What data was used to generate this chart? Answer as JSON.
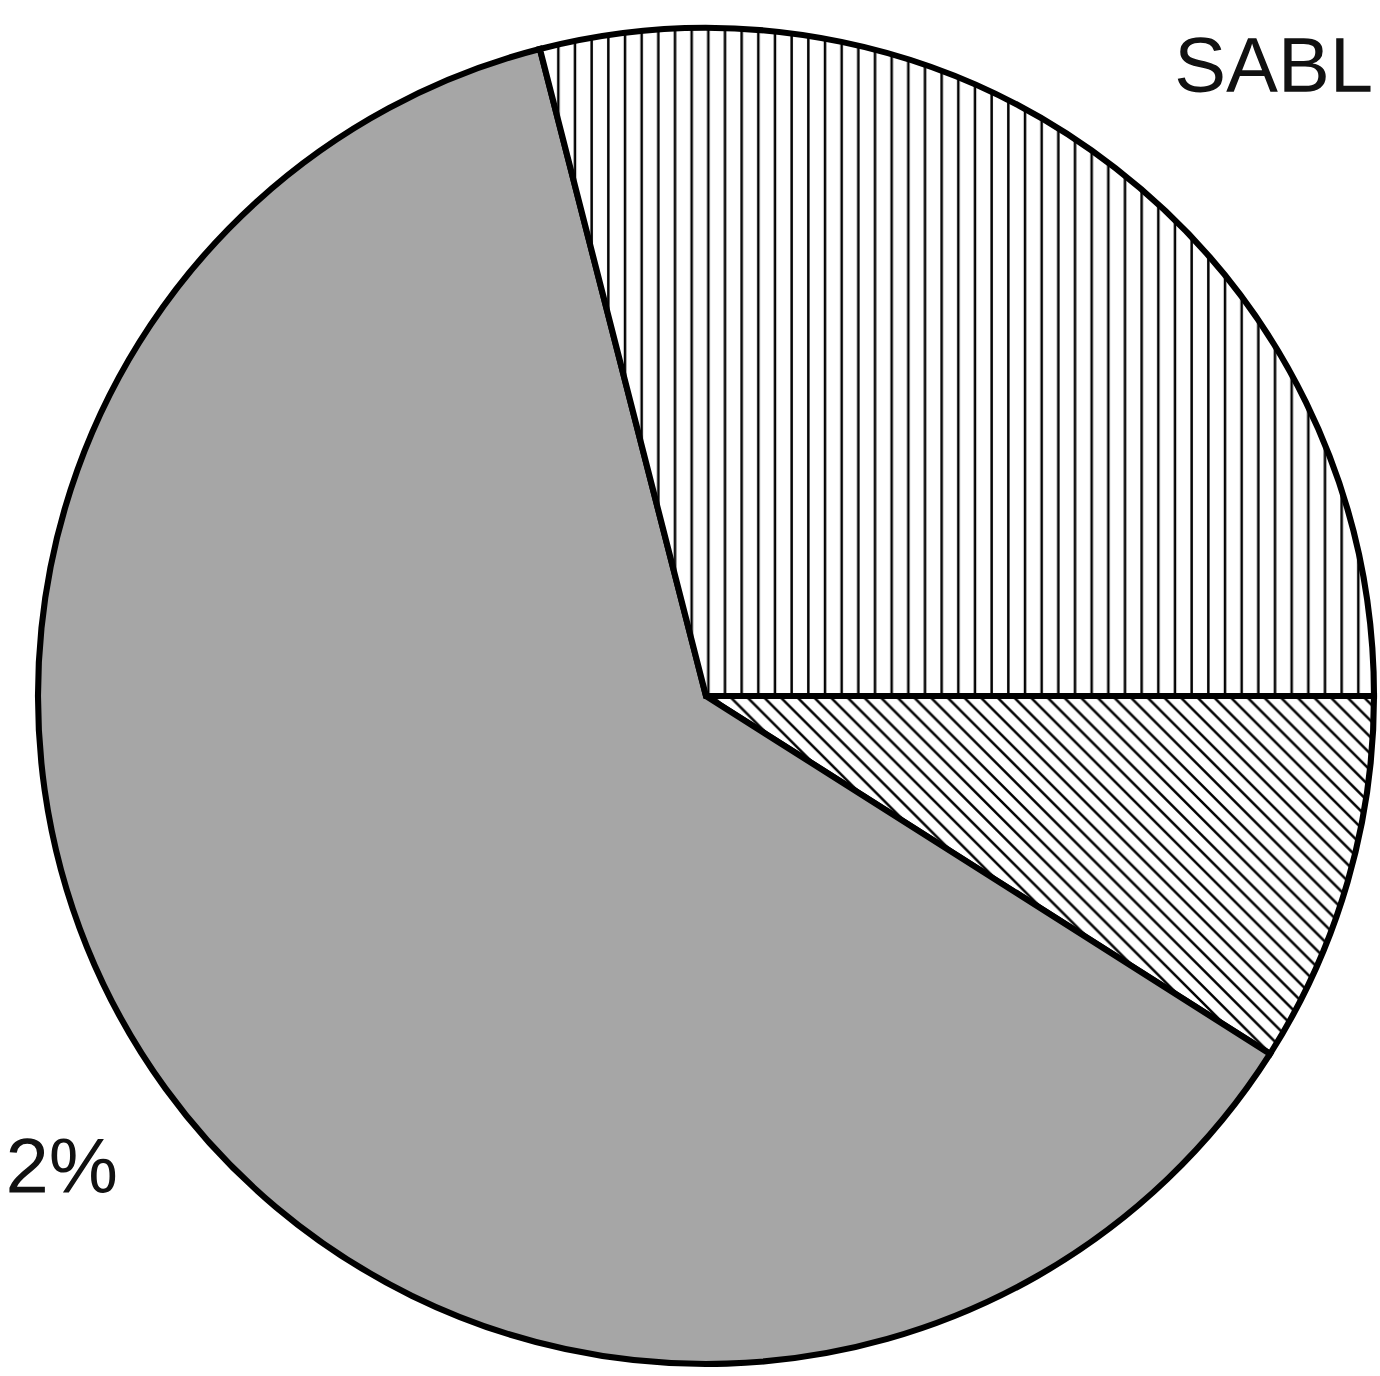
{
  "chart_data": {
    "type": "pie",
    "categories": [
      null,
      null,
      "SABL"
    ],
    "values": [
      9,
      62,
      29
    ],
    "colors": [
      "#000000",
      "#a6a6a6",
      "#000000"
    ],
    "annotations": [
      "2%"
    ]
  }
}
